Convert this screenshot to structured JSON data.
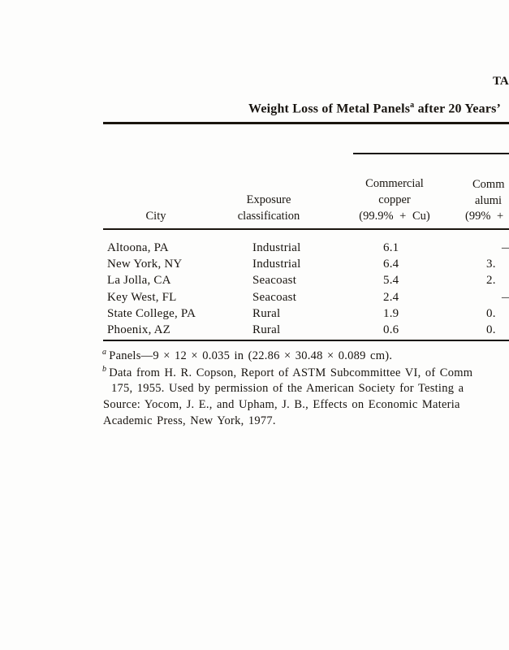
{
  "header": {
    "corner_fragment": "TA"
  },
  "title": {
    "prefix": "Weight Loss of Metal Panels",
    "footnote_marker": "a",
    "suffix": " after 20 Years’"
  },
  "table": {
    "columns": {
      "city": {
        "label": "City"
      },
      "exposure": {
        "line1": "Exposure",
        "line2": "classification"
      },
      "copper": {
        "line1": "Commercial",
        "line2": "copper",
        "line3": "(99.9% + Cu)"
      },
      "aluminum": {
        "line1": "Comm",
        "line2": "alumi",
        "line3": "(99% +"
      }
    },
    "rows": [
      {
        "city": "Altoona, PA",
        "classification": "Industrial",
        "copper": "6.1",
        "aluminum": "—"
      },
      {
        "city": "New York, NY",
        "classification": "Industrial",
        "copper": "6.4",
        "aluminum": "3."
      },
      {
        "city": "La Jolla, CA",
        "classification": "Seacoast",
        "copper": "5.4",
        "aluminum": "2."
      },
      {
        "city": "Key West, FL",
        "classification": "Seacoast",
        "copper": "2.4",
        "aluminum": "—"
      },
      {
        "city": "State College, PA",
        "classification": "Rural",
        "copper": "1.9",
        "aluminum": "0."
      },
      {
        "city": "Phoenix, AZ",
        "classification": "Rural",
        "copper": "0.6",
        "aluminum": "0."
      }
    ]
  },
  "footnotes": {
    "a_marker": "a",
    "a_text": "Panels—9 × 12 × 0.035 in (22.86 × 30.48 × 0.089 cm).",
    "b_marker": "b",
    "b_line1": "Data from H. R. Copson, Report of ASTM Subcommittee VI, of Comm",
    "b_line2": "175, 1955. Used by permission of the American Society for Testing a",
    "source_line1": "Source: Yocom, J. E., and Upham, J. B., Effects on Economic Materia",
    "source_line2": "Academic Press, New York, 1977."
  }
}
